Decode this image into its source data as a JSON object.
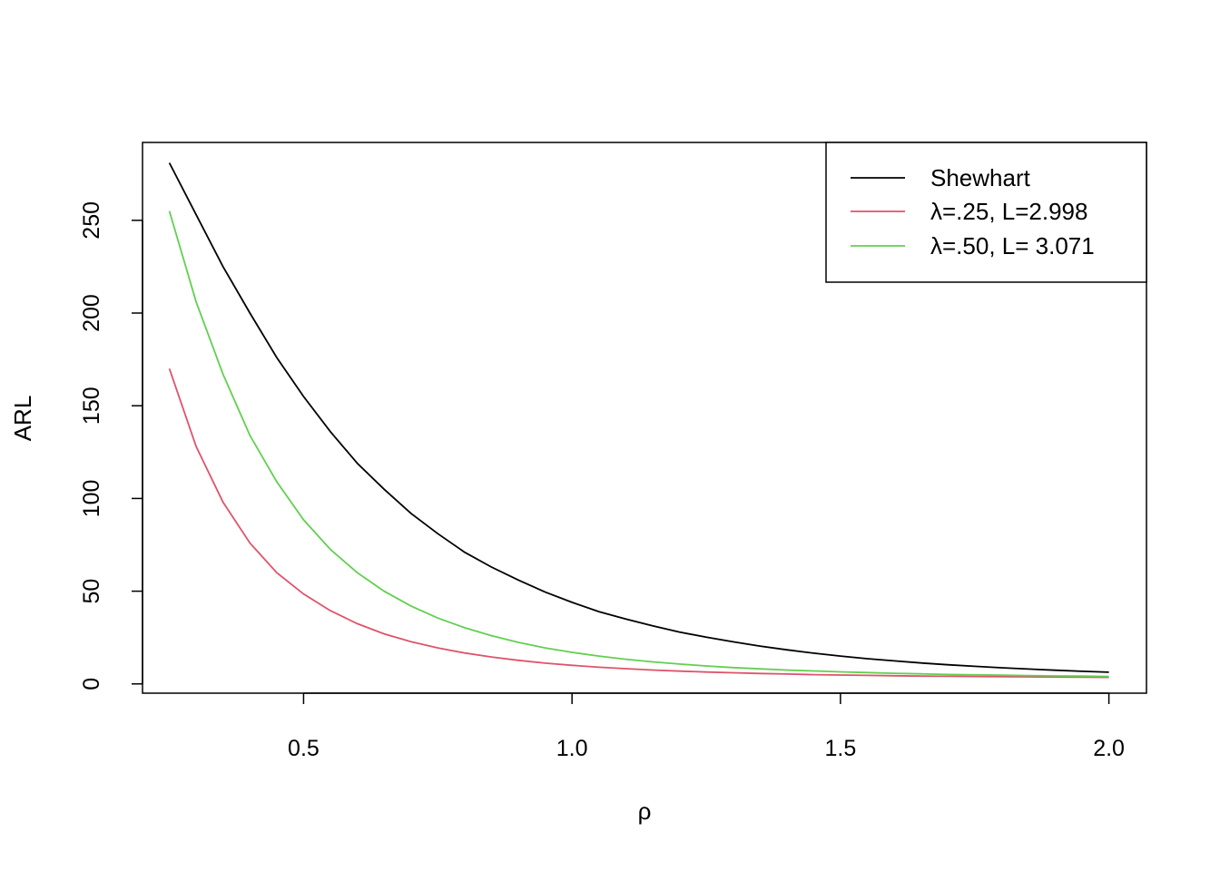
{
  "chart_data": {
    "type": "line",
    "title": "",
    "xlabel": "ρ",
    "ylabel": "ARL",
    "xlim": [
      0.2,
      2.07
    ],
    "ylim": [
      -5,
      292
    ],
    "x_ticks": [
      0.5,
      1.0,
      1.5,
      2.0
    ],
    "x_tick_labels": [
      "0.5",
      "1.0",
      "1.5",
      "2.0"
    ],
    "y_ticks": [
      0,
      50,
      100,
      150,
      200,
      250
    ],
    "y_tick_labels": [
      "0",
      "50",
      "100",
      "150",
      "200",
      "250"
    ],
    "grid": false,
    "legend_position": "top-right",
    "x": [
      0.25,
      0.3,
      0.35,
      0.4,
      0.45,
      0.5,
      0.55,
      0.6,
      0.65,
      0.7,
      0.75,
      0.8,
      0.85,
      0.9,
      0.95,
      1.0,
      1.05,
      1.1,
      1.15,
      1.2,
      1.25,
      1.3,
      1.35,
      1.4,
      1.45,
      1.5,
      1.55,
      1.6,
      1.65,
      1.7,
      1.75,
      1.8,
      1.85,
      1.9,
      1.95,
      2.0
    ],
    "series": [
      {
        "name": "Shewhart",
        "color": "#000000",
        "values": [
          281.0,
          253.0,
          225.0,
          200.0,
          176.0,
          155.0,
          136.0,
          119.0,
          105.0,
          92.0,
          81.0,
          71.0,
          63.0,
          56.0,
          49.5,
          44.0,
          39.0,
          35.0,
          31.3,
          28.0,
          25.2,
          22.7,
          20.4,
          18.4,
          16.6,
          15.0,
          13.6,
          12.4,
          11.3,
          10.3,
          9.5,
          8.7,
          8.0,
          7.4,
          6.8,
          6.3
        ]
      },
      {
        "name": "λ=.25, L=2.998",
        "color": "#DF536B",
        "values": [
          170.0,
          128.0,
          98.0,
          76.0,
          60.0,
          48.5,
          39.5,
          32.5,
          27.0,
          22.8,
          19.4,
          16.7,
          14.5,
          12.7,
          11.2,
          10.0,
          9.0,
          8.2,
          7.5,
          6.9,
          6.4,
          6.0,
          5.6,
          5.3,
          5.0,
          4.8,
          4.6,
          4.4,
          4.2,
          4.1,
          4.0,
          3.9,
          3.8,
          3.7,
          3.6,
          3.5
        ]
      },
      {
        "name": "λ=.50, L= 3.071",
        "color": "#61D04F",
        "values": [
          255.0,
          206.0,
          167.0,
          134.0,
          109.0,
          88.5,
          72.5,
          60.0,
          50.0,
          42.0,
          35.5,
          30.3,
          26.0,
          22.4,
          19.4,
          17.0,
          15.0,
          13.3,
          11.9,
          10.7,
          9.7,
          8.8,
          8.1,
          7.5,
          7.0,
          6.5,
          6.1,
          5.7,
          5.4,
          5.1,
          4.9,
          4.7,
          4.5,
          4.3,
          4.2,
          4.0
        ]
      }
    ]
  }
}
